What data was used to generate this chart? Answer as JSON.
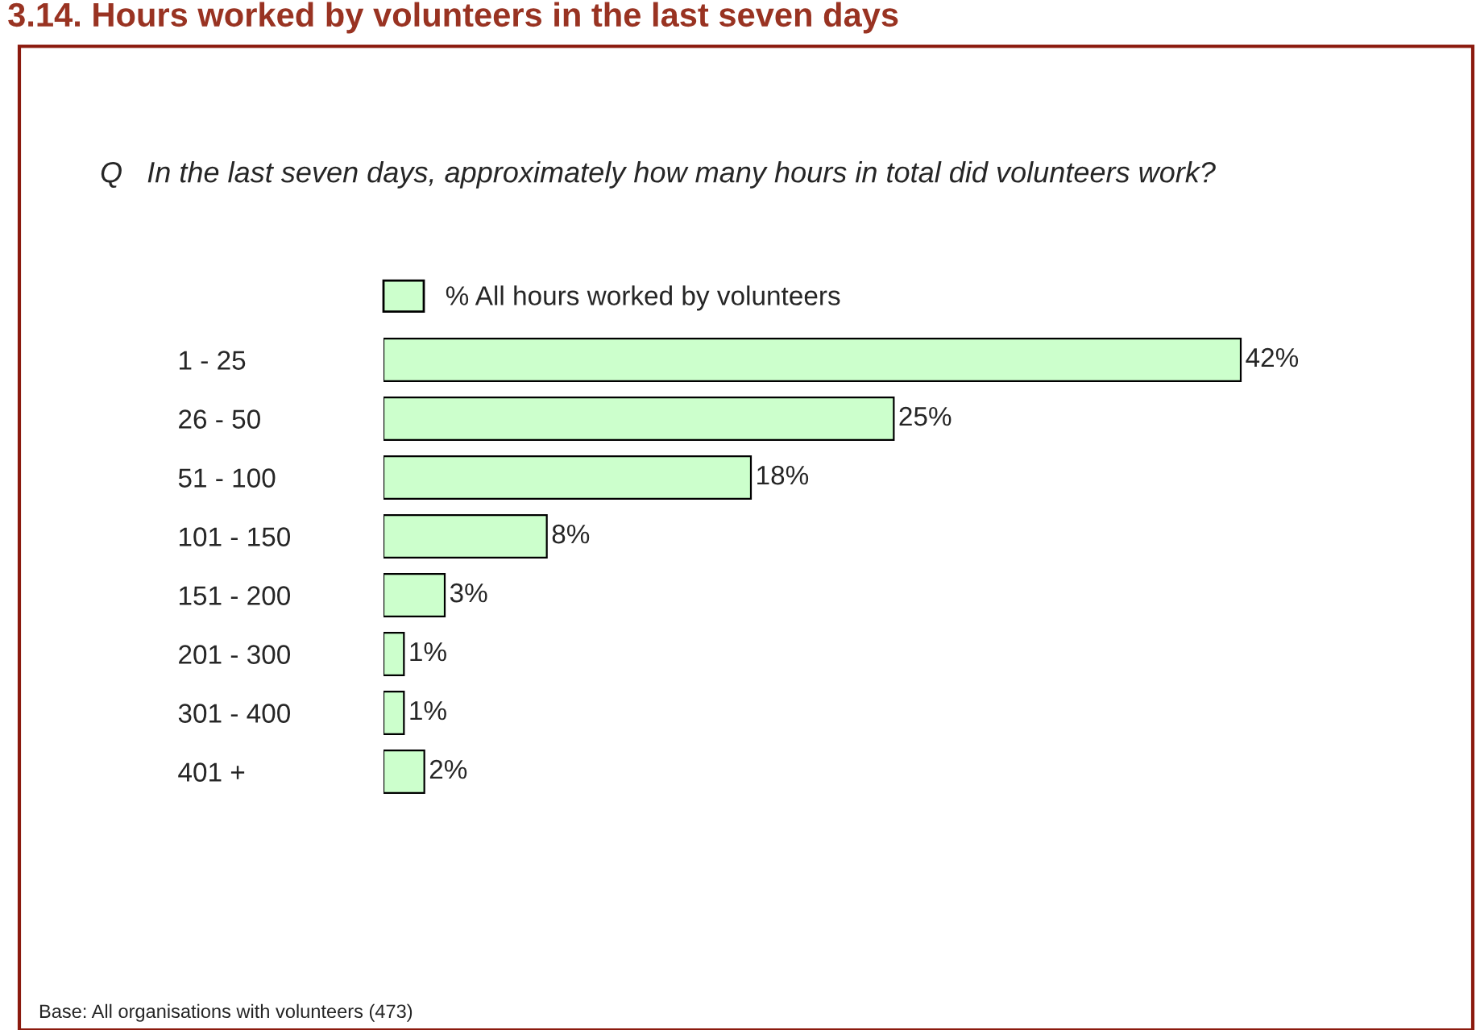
{
  "chart_data": {
    "type": "bar",
    "orientation": "horizontal",
    "title": "3.14. Hours worked by volunteers in the last seven days",
    "subtitle": "Q   In the last seven days, approximately how many hours in total did volunteers work?",
    "categories": [
      "1 - 25",
      "26 - 50",
      "51 - 100",
      "101 - 150",
      "151 - 200",
      "201 - 300",
      "301 - 400",
      "401 +"
    ],
    "series": [
      {
        "name": "% All hours worked by volunteers",
        "color": "#ccffcc",
        "values": [
          42,
          25,
          18,
          8,
          3,
          1,
          1,
          2
        ],
        "value_labels": [
          "42%",
          "25%",
          "18%",
          "8%",
          "3%",
          "1%",
          "1%",
          "2%"
        ]
      }
    ],
    "legend": "top",
    "grid": false,
    "annotations": [
      "Base: All organisations with volunteers (473)"
    ]
  }
}
